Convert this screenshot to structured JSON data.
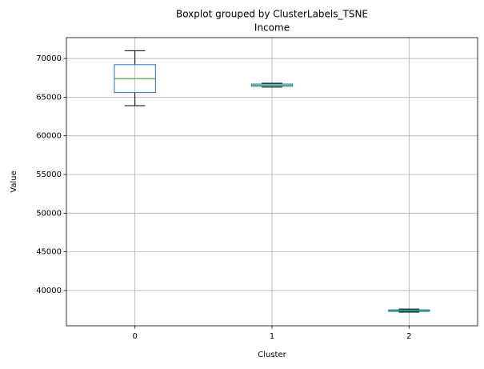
{
  "chart_data": {
    "type": "box",
    "suptitle": "Boxplot grouped by ClusterLabels_TSNE",
    "title": "Income",
    "x_label": "Cluster",
    "y_label": "Value",
    "categories": [
      "0",
      "1",
      "2"
    ],
    "boxes": [
      {
        "min": 63900,
        "q1": 65600,
        "median": 67400,
        "q3": 69200,
        "max": 71000
      },
      {
        "min": 66300,
        "q1": 66400,
        "median": 66550,
        "q3": 66700,
        "max": 66800
      },
      {
        "min": 37200,
        "q1": 37300,
        "median": 37400,
        "q3": 37500,
        "max": 37600
      }
    ],
    "box_color": "#1f77b4",
    "median_color": "#2ca02c",
    "whisker_color": "#000000",
    "ylim": [
      35440,
      72700
    ],
    "yticks": [
      40000,
      45000,
      50000,
      55000,
      60000,
      65000,
      70000
    ],
    "grid": true
  }
}
